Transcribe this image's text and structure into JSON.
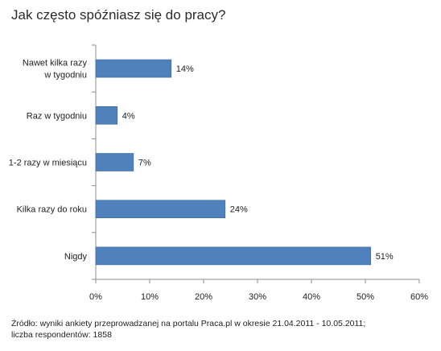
{
  "chart_data": {
    "type": "bar",
    "orientation": "horizontal",
    "title": "Jak często spóźniasz się do pracy?",
    "categories": [
      [
        "Nawet kilka razy",
        "w tygodniu"
      ],
      [
        "Raz w tygodniu"
      ],
      [
        "1-2 razy w miesiącu"
      ],
      [
        "Kilka razy do roku"
      ],
      [
        "Nigdy"
      ]
    ],
    "values": [
      14,
      4,
      7,
      24,
      51
    ],
    "data_labels": [
      "14%",
      "4%",
      "7%",
      "24%",
      "51%"
    ],
    "xlim": [
      0,
      60
    ],
    "x_ticks": [
      0,
      10,
      20,
      30,
      40,
      50,
      60
    ],
    "x_tick_labels": [
      "0%",
      "10%",
      "20%",
      "30%",
      "40%",
      "50%",
      "60%"
    ],
    "bar_color": "#4f81bd",
    "grid": false,
    "legend": "none"
  },
  "source": {
    "line1": "Źródło: wyniki ankiety przeprowadzanej na portalu Praca.pl w okresie 21.04.2011 - 10.05.2011;",
    "line2": "liczba respondentów: 1858"
  }
}
